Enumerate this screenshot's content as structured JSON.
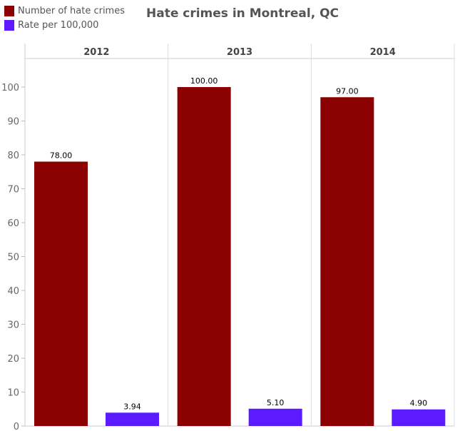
{
  "chart_data": {
    "type": "bar",
    "title": "Hate crimes in Montreal, QC",
    "categories": [
      "2012",
      "2013",
      "2014"
    ],
    "series": [
      {
        "name": "Number of hate crimes",
        "color": "#8b0000",
        "values": [
          78,
          100,
          97
        ],
        "labels": [
          "78.00",
          "100.00",
          "97.00"
        ]
      },
      {
        "name": "Rate per 100,000",
        "color": "#5b1aff",
        "values": [
          3.94,
          5.1,
          4.9
        ],
        "labels": [
          "3.94",
          "5.10",
          "4.90"
        ]
      }
    ],
    "yticks": [
      "0",
      "10",
      "20",
      "30",
      "40",
      "50",
      "60",
      "70",
      "80",
      "90",
      "100"
    ],
    "ylim": [
      0,
      100
    ],
    "xlabel": "",
    "ylabel": "",
    "legend": "top-left",
    "grid": false
  }
}
